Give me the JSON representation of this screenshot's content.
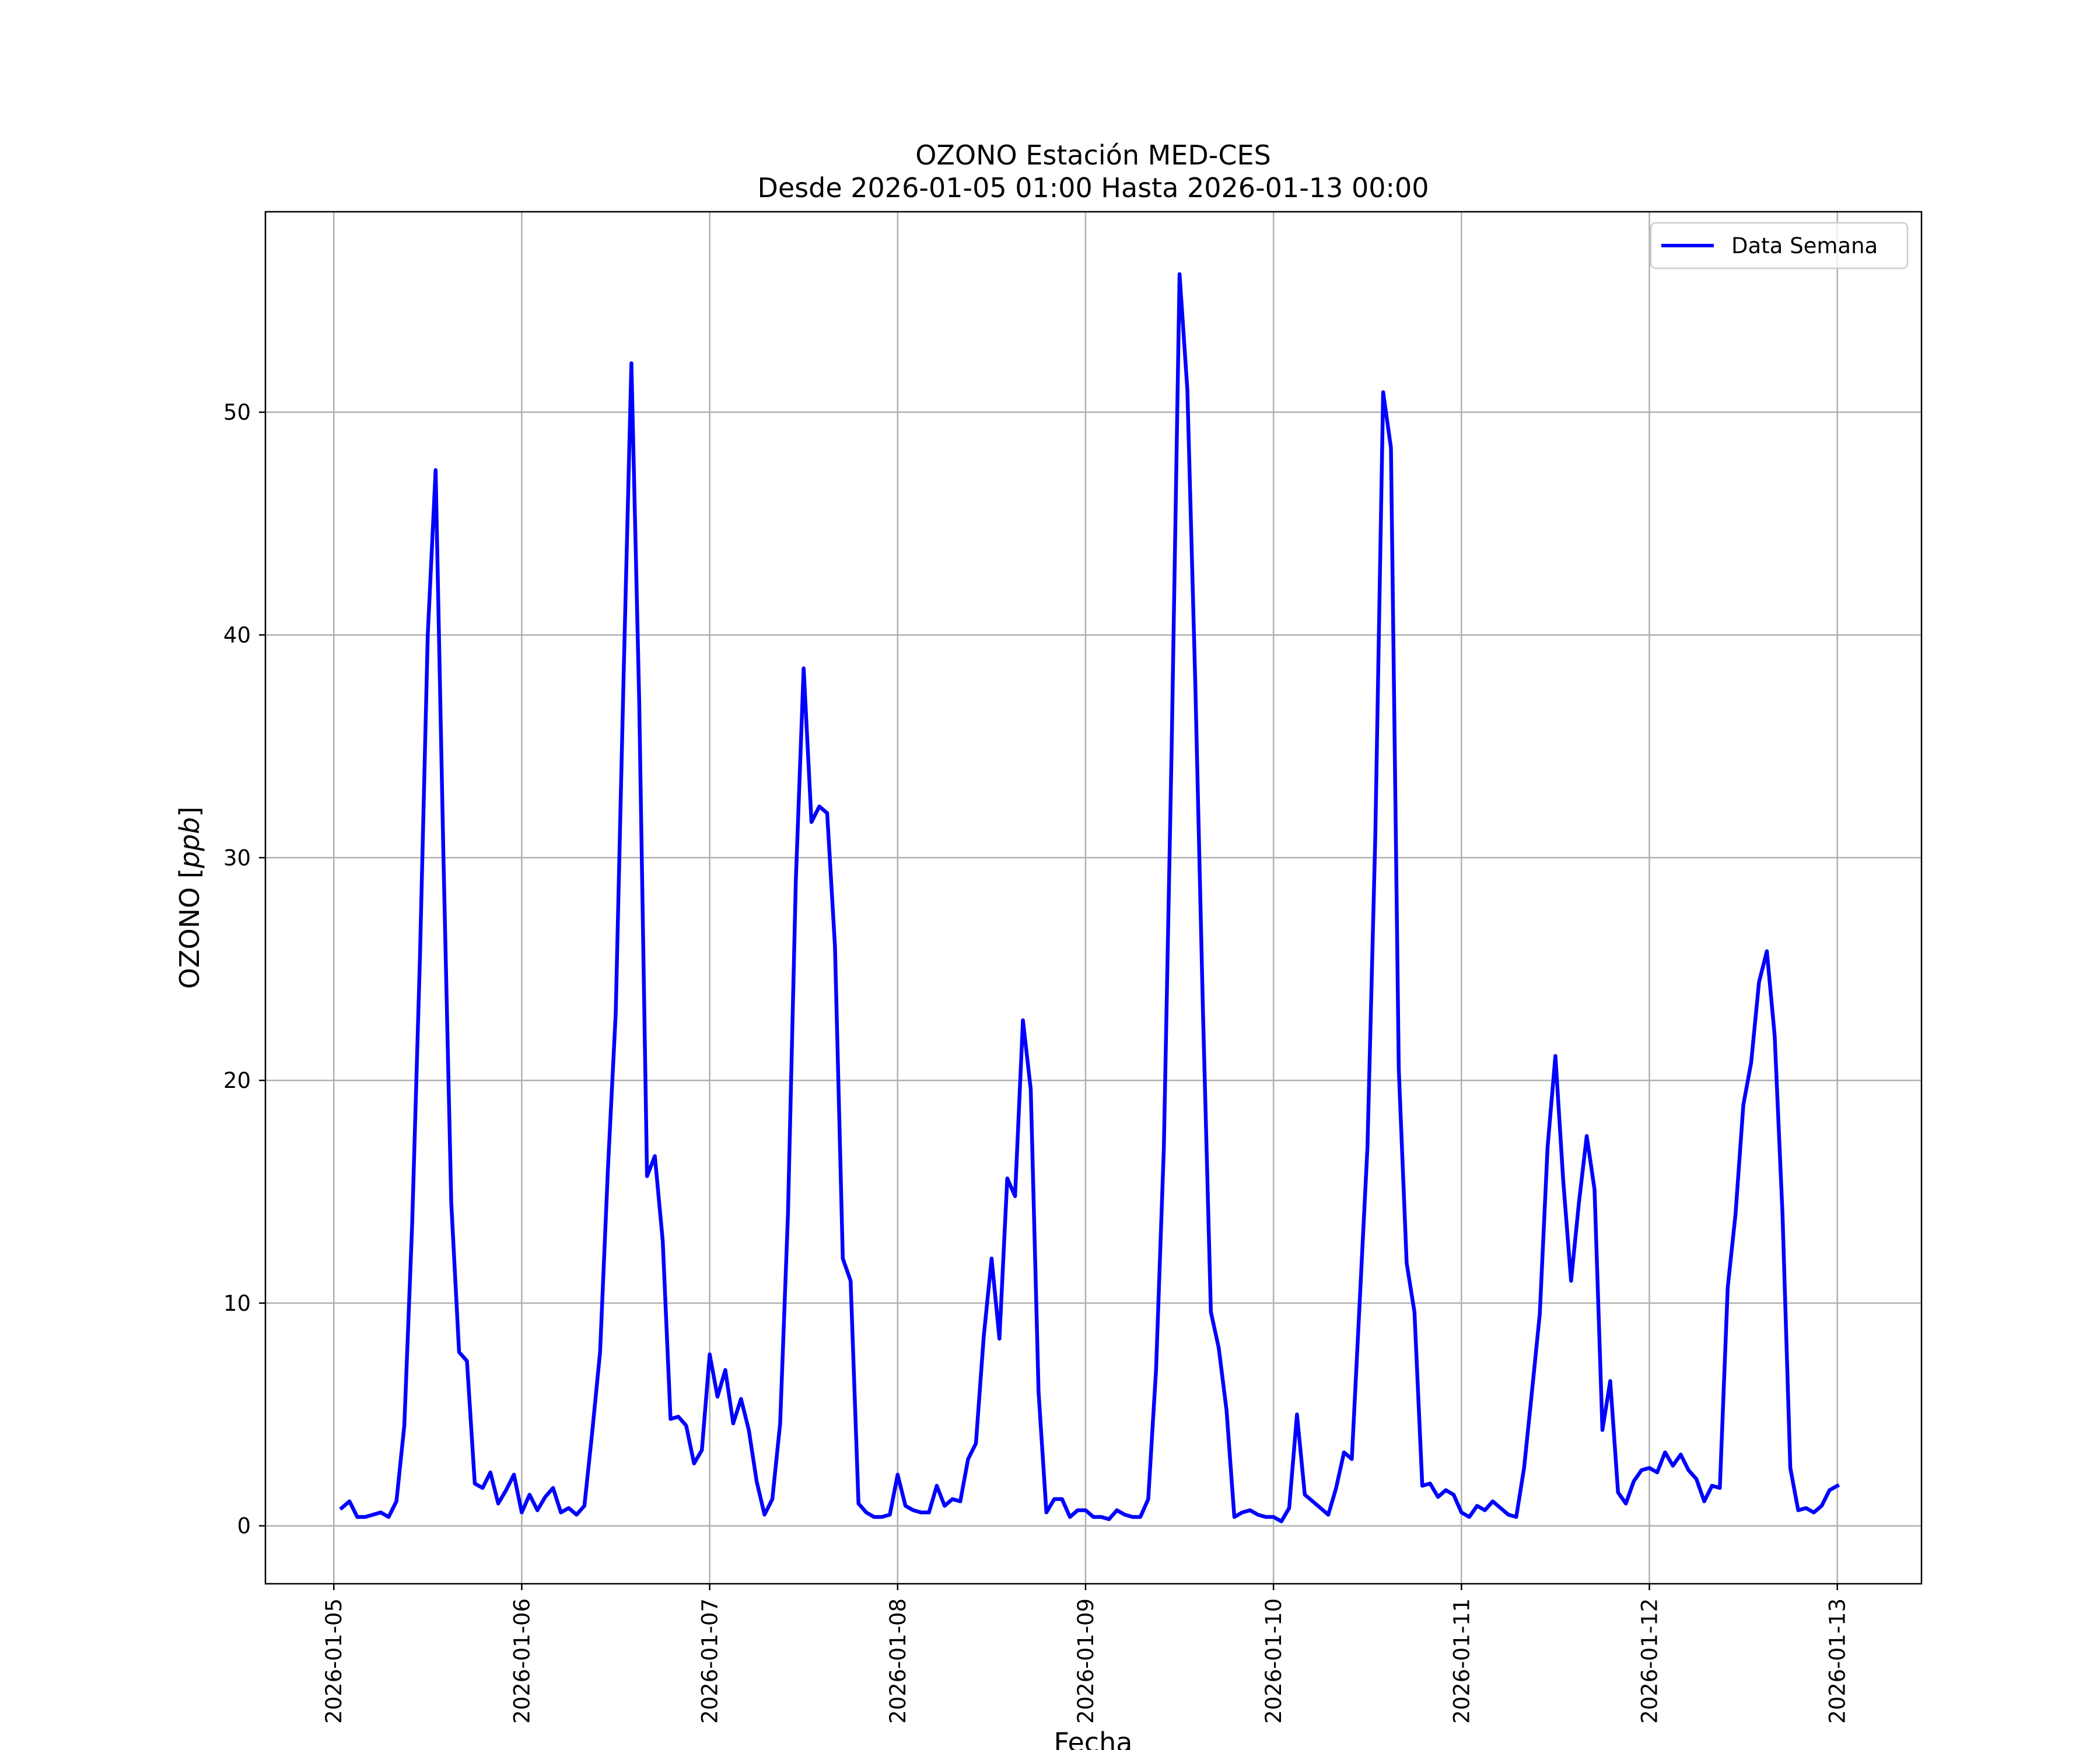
{
  "chart_data": {
    "type": "line",
    "title": "OZONO Estación MED-CES",
    "subtitle": "Desde 2026-01-05 01:00 Hasta 2026-01-13 00:00",
    "xlabel": "Fecha",
    "ylabel": "OZONO [ppb]",
    "ylim": [
      -2.6,
      59
    ],
    "xlim": [
      "2026-01-04 15:16",
      "2026-01-13 10:45"
    ],
    "xticks": [
      "2026-01-05",
      "2026-01-06",
      "2026-01-07",
      "2026-01-08",
      "2026-01-09",
      "2026-01-10",
      "2026-01-11",
      "2026-01-12",
      "2026-01-13"
    ],
    "yticks": [
      0,
      10,
      20,
      30,
      40,
      50
    ],
    "grid": true,
    "legend_position": "top-right",
    "series": [
      {
        "name": "Data Semana",
        "color": "#0000ff",
        "x": [
          "2026-01-05 01:00",
          "2026-01-05 02:00",
          "2026-01-05 03:00",
          "2026-01-05 04:00",
          "2026-01-05 05:00",
          "2026-01-05 06:00",
          "2026-01-05 07:00",
          "2026-01-05 08:00",
          "2026-01-05 09:00",
          "2026-01-05 10:00",
          "2026-01-05 11:00",
          "2026-01-05 12:00",
          "2026-01-05 13:00",
          "2026-01-05 14:00",
          "2026-01-05 15:00",
          "2026-01-05 16:00",
          "2026-01-05 17:00",
          "2026-01-05 18:00",
          "2026-01-05 19:00",
          "2026-01-05 20:00",
          "2026-01-05 21:00",
          "2026-01-05 22:00",
          "2026-01-05 23:00",
          "2026-01-06 00:00",
          "2026-01-06 01:00",
          "2026-01-06 02:00",
          "2026-01-06 03:00",
          "2026-01-06 04:00",
          "2026-01-06 05:00",
          "2026-01-06 06:00",
          "2026-01-06 07:00",
          "2026-01-06 08:00",
          "2026-01-06 09:00",
          "2026-01-06 10:00",
          "2026-01-06 11:00",
          "2026-01-06 12:00",
          "2026-01-06 13:00",
          "2026-01-06 14:00",
          "2026-01-06 15:00",
          "2026-01-06 16:00",
          "2026-01-06 17:00",
          "2026-01-06 18:00",
          "2026-01-06 19:00",
          "2026-01-06 20:00",
          "2026-01-06 21:00",
          "2026-01-06 22:00",
          "2026-01-06 23:00",
          "2026-01-07 00:00",
          "2026-01-07 01:00",
          "2026-01-07 02:00",
          "2026-01-07 03:00",
          "2026-01-07 04:00",
          "2026-01-07 05:00",
          "2026-01-07 06:00",
          "2026-01-07 07:00",
          "2026-01-07 08:00",
          "2026-01-07 09:00",
          "2026-01-07 10:00",
          "2026-01-07 11:00",
          "2026-01-07 12:00",
          "2026-01-07 13:00",
          "2026-01-07 14:00",
          "2026-01-07 15:00",
          "2026-01-07 16:00",
          "2026-01-07 17:00",
          "2026-01-07 18:00",
          "2026-01-07 19:00",
          "2026-01-07 20:00",
          "2026-01-07 21:00",
          "2026-01-07 22:00",
          "2026-01-07 23:00",
          "2026-01-08 00:00",
          "2026-01-08 01:00",
          "2026-01-08 02:00",
          "2026-01-08 03:00",
          "2026-01-08 04:00",
          "2026-01-08 05:00",
          "2026-01-08 06:00",
          "2026-01-08 07:00",
          "2026-01-08 08:00",
          "2026-01-08 09:00",
          "2026-01-08 10:00",
          "2026-01-08 11:00",
          "2026-01-08 12:00",
          "2026-01-08 13:00",
          "2026-01-08 14:00",
          "2026-01-08 15:00",
          "2026-01-08 16:00",
          "2026-01-08 17:00",
          "2026-01-08 18:00",
          "2026-01-08 19:00",
          "2026-01-08 20:00",
          "2026-01-08 21:00",
          "2026-01-08 22:00",
          "2026-01-08 23:00",
          "2026-01-09 00:00",
          "2026-01-09 01:00",
          "2026-01-09 02:00",
          "2026-01-09 03:00",
          "2026-01-09 04:00",
          "2026-01-09 05:00",
          "2026-01-09 06:00",
          "2026-01-09 07:00",
          "2026-01-09 08:00",
          "2026-01-09 09:00",
          "2026-01-09 10:00",
          "2026-01-09 11:00",
          "2026-01-09 12:00",
          "2026-01-09 13:00",
          "2026-01-09 14:00",
          "2026-01-09 15:00",
          "2026-01-09 16:00",
          "2026-01-09 17:00",
          "2026-01-09 18:00",
          "2026-01-09 19:00",
          "2026-01-09 20:00",
          "2026-01-09 21:00",
          "2026-01-09 22:00",
          "2026-01-09 23:00",
          "2026-01-10 00:00",
          "2026-01-10 01:00",
          "2026-01-10 02:00",
          "2026-01-10 03:00",
          "2026-01-10 04:00",
          "2026-01-10 05:00",
          "2026-01-10 06:00",
          "2026-01-10 07:00",
          "2026-01-10 08:00",
          "2026-01-10 09:00",
          "2026-01-10 10:00",
          "2026-01-10 11:00",
          "2026-01-10 12:00",
          "2026-01-10 13:00",
          "2026-01-10 14:00",
          "2026-01-10 15:00",
          "2026-01-10 16:00",
          "2026-01-10 17:00",
          "2026-01-10 18:00",
          "2026-01-10 19:00",
          "2026-01-10 20:00",
          "2026-01-10 21:00",
          "2026-01-10 22:00",
          "2026-01-10 23:00",
          "2026-01-11 00:00",
          "2026-01-11 01:00",
          "2026-01-11 02:00",
          "2026-01-11 03:00",
          "2026-01-11 04:00",
          "2026-01-11 05:00",
          "2026-01-11 06:00",
          "2026-01-11 07:00",
          "2026-01-11 08:00",
          "2026-01-11 09:00",
          "2026-01-11 10:00",
          "2026-01-11 11:00",
          "2026-01-11 12:00",
          "2026-01-11 13:00",
          "2026-01-11 14:00",
          "2026-01-11 15:00",
          "2026-01-11 16:00",
          "2026-01-11 17:00",
          "2026-01-11 18:00",
          "2026-01-11 19:00",
          "2026-01-11 20:00",
          "2026-01-11 21:00",
          "2026-01-11 22:00",
          "2026-01-11 23:00",
          "2026-01-12 00:00",
          "2026-01-12 01:00",
          "2026-01-12 02:00",
          "2026-01-12 03:00",
          "2026-01-12 04:00",
          "2026-01-12 05:00",
          "2026-01-12 06:00",
          "2026-01-12 07:00",
          "2026-01-12 08:00",
          "2026-01-12 09:00",
          "2026-01-12 10:00",
          "2026-01-12 11:00",
          "2026-01-12 12:00",
          "2026-01-12 13:00",
          "2026-01-12 14:00",
          "2026-01-12 15:00",
          "2026-01-12 16:00",
          "2026-01-12 17:00",
          "2026-01-12 18:00",
          "2026-01-12 19:00",
          "2026-01-12 20:00",
          "2026-01-12 21:00",
          "2026-01-12 22:00",
          "2026-01-12 23:00",
          "2026-01-13 00:00"
        ],
        "values": [
          0.8,
          1.1,
          0.4,
          0.4,
          0.5,
          0.6,
          0.4,
          1.1,
          4.5,
          13.5,
          25.5,
          40.0,
          47.4,
          30.0,
          14.5,
          7.8,
          7.4,
          1.9,
          1.7,
          2.4,
          1.0,
          1.6,
          2.3,
          0.6,
          1.4,
          0.7,
          1.3,
          1.7,
          0.6,
          0.8,
          0.5,
          0.9,
          4.2,
          7.8,
          16.0,
          23.0,
          38.0,
          52.2,
          37.0,
          15.7,
          16.6,
          12.8,
          4.8,
          4.9,
          4.5,
          2.8,
          3.4,
          7.7,
          5.8,
          7.0,
          4.6,
          5.7,
          4.3,
          2.0,
          0.5,
          1.2,
          4.6,
          14.0,
          29.0,
          38.5,
          31.6,
          32.3,
          32.0,
          26.0,
          12.0,
          11.0,
          1.0,
          0.6,
          0.4,
          0.4,
          0.5,
          2.3,
          0.9,
          0.7,
          0.6,
          0.6,
          1.8,
          0.9,
          1.2,
          1.1,
          3.0,
          3.7,
          8.5,
          12.0,
          8.4,
          15.6,
          14.8,
          22.7,
          19.6,
          6.0,
          0.6,
          1.2,
          1.2,
          0.4,
          0.7,
          0.7,
          0.4,
          0.4,
          0.3,
          0.7,
          0.5,
          0.4,
          0.4,
          1.2,
          7.0,
          17.0,
          35.0,
          56.2,
          51.0,
          38.0,
          23.0,
          9.6,
          8.0,
          5.2,
          0.4,
          0.6,
          0.7,
          0.5,
          0.4,
          0.4,
          0.2,
          0.8,
          5.0,
          1.4,
          1.1,
          0.8,
          0.5,
          1.7,
          3.3,
          3.0,
          10.0,
          17.0,
          31.0,
          50.9,
          48.4,
          20.5,
          11.8,
          9.6,
          1.8,
          1.9,
          1.3,
          1.6,
          1.4,
          0.6,
          0.4,
          0.9,
          0.7,
          1.1,
          0.8,
          0.5,
          0.4,
          2.6,
          6.0,
          9.5,
          17.0,
          21.1,
          15.5,
          11.0,
          14.5,
          17.5,
          15.1,
          4.3,
          6.5,
          1.5,
          1.0,
          2.0,
          2.5,
          2.6,
          2.4,
          3.3,
          2.7,
          3.2,
          2.5,
          2.1,
          1.1,
          1.8,
          1.7,
          10.7,
          14.0,
          18.9,
          20.8,
          24.4,
          25.8,
          22.0,
          14.0,
          2.6,
          0.7,
          0.8,
          0.6,
          0.9,
          1.6,
          1.8
        ]
      }
    ]
  }
}
